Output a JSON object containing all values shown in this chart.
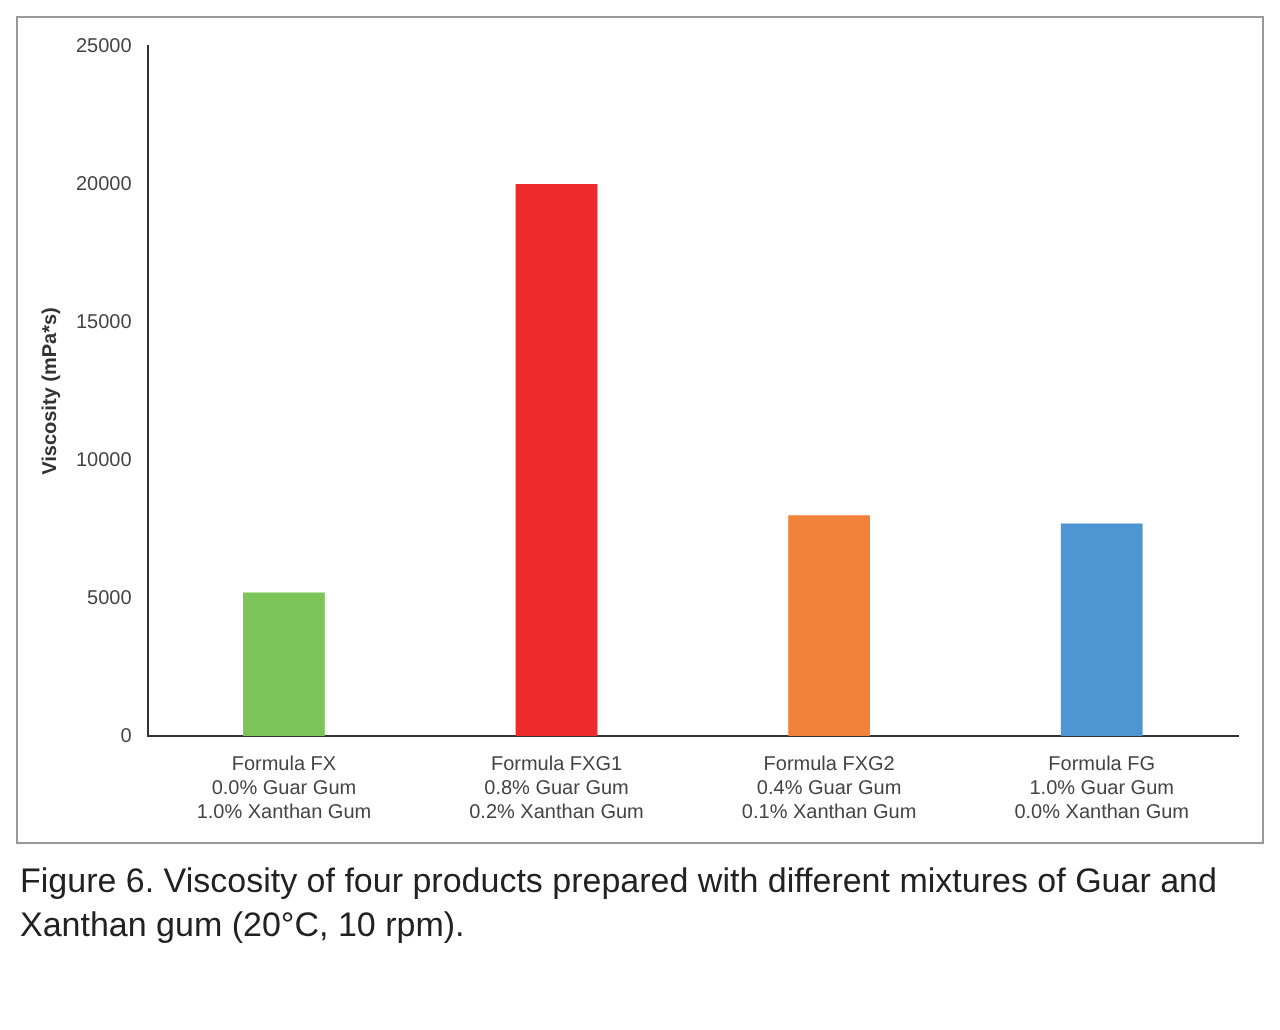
{
  "chart_data": {
    "type": "bar",
    "ylabel": "Viscosity (mPa*s)",
    "categories": [
      "Formula FX\n0.0% Guar Gum\n1.0% Xanthan Gum",
      "Formula FXG1\n0.8% Guar Gum\n0.2% Xanthan Gum",
      "Formula FXG2\n0.4% Guar Gum\n0.1% Xanthan Gum",
      "Formula FG\n1.0% Guar Gum\n0.0% Xanthan Gum"
    ],
    "values": [
      5200,
      20000,
      8000,
      7700
    ],
    "colors": [
      "#7dc55a",
      "#ee2b2b",
      "#f2823a",
      "#4d96d3"
    ],
    "ylim": [
      0,
      25000
    ],
    "yticks": [
      0,
      5000,
      10000,
      15000,
      20000,
      25000
    ],
    "grid": false,
    "legend": false,
    "annotations": [
      "Figure 6. Viscosity of four products prepared with different mixtures of Guar and Xanthan gum (20°C, 10 rpm)."
    ]
  }
}
